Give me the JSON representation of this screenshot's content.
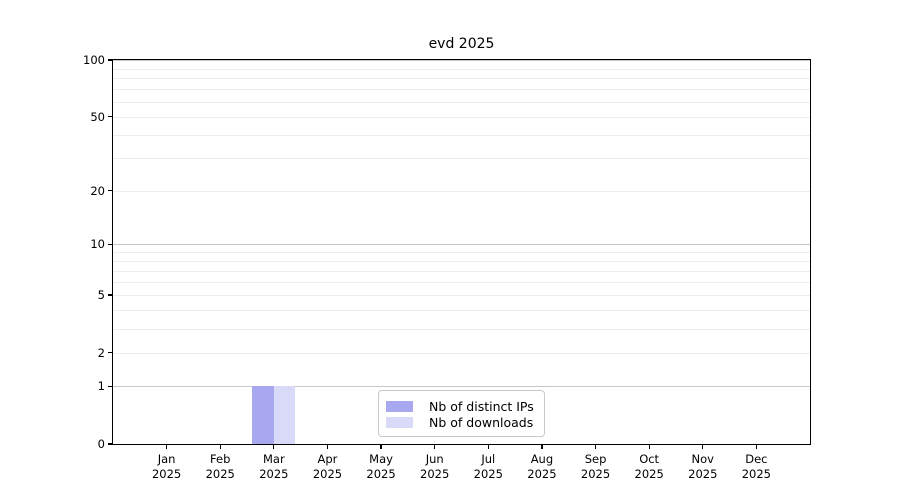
{
  "chart_data": {
    "type": "bar",
    "title": "evd 2025",
    "categories": [
      "Jan",
      "Feb",
      "Mar",
      "Apr",
      "May",
      "Jun",
      "Jul",
      "Aug",
      "Sep",
      "Oct",
      "Nov",
      "Dec"
    ],
    "year_label": "2025",
    "series": [
      {
        "name": "Nb of distinct IPs",
        "color": "#a8a8f0",
        "values": [
          0,
          0,
          1,
          0,
          0,
          0,
          0,
          0,
          0,
          0,
          0,
          0
        ]
      },
      {
        "name": "Nb of downloads",
        "color": "#d9d9f8",
        "values": [
          0,
          0,
          1,
          0,
          0,
          0,
          0,
          0,
          0,
          0,
          0,
          0
        ]
      }
    ],
    "y_axis": {
      "scale": "log1p",
      "min": 0,
      "max": 100,
      "tick_labels": [
        0,
        1,
        2,
        5,
        10,
        20,
        50,
        100
      ],
      "major_gridlines": [
        1,
        10,
        100
      ],
      "minor_gridlines": [
        2,
        3,
        4,
        5,
        6,
        7,
        8,
        9,
        20,
        30,
        40,
        50,
        60,
        70,
        80,
        90
      ]
    },
    "x_axis": {
      "lim": [
        -1,
        12
      ]
    },
    "bar_width_fraction": 0.4,
    "legend_position": "bottom-center",
    "colors": {
      "major_grid": "#c8c8c8",
      "minor_grid": "#ececec",
      "axis": "#000000",
      "background": "#ffffff"
    }
  }
}
